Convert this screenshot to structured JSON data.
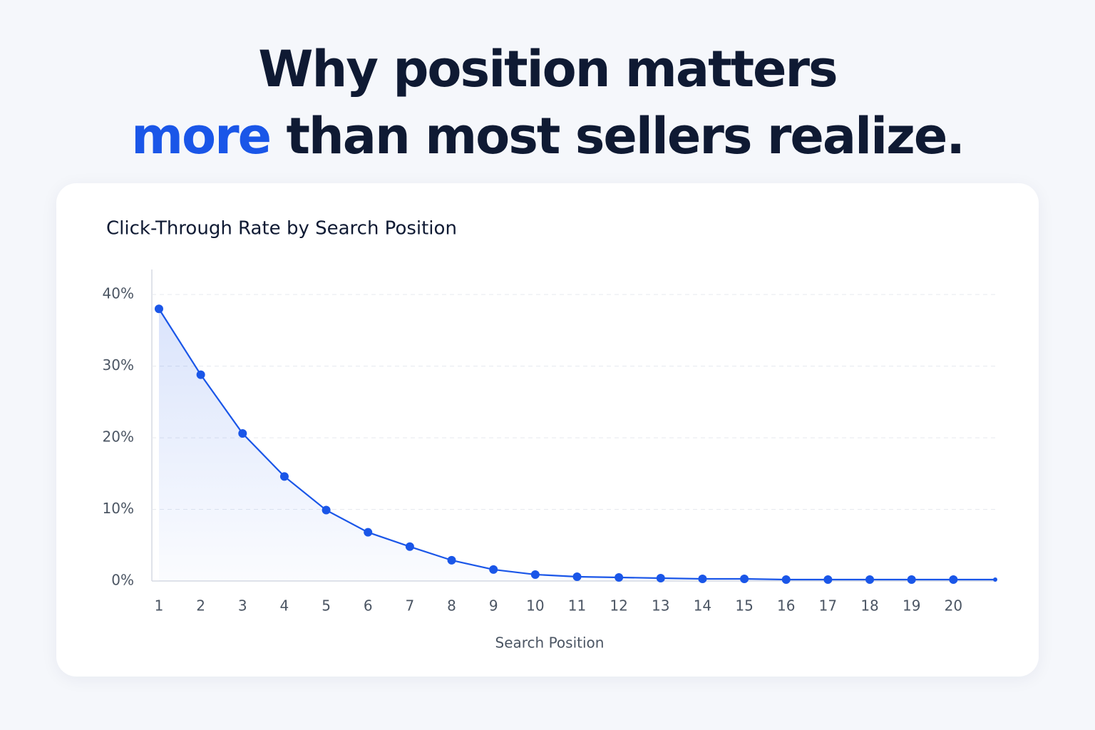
{
  "headline": {
    "line1": "Why position matters",
    "highlight": "more",
    "line2": "than most sellers realize."
  },
  "chart_data": {
    "type": "line",
    "title": "Click-Through Rate by Search Position",
    "x_label": "Search Position",
    "x": [
      1,
      2,
      3,
      4,
      5,
      6,
      7,
      8,
      9,
      10,
      11,
      12,
      13,
      14,
      15,
      16,
      17,
      18,
      19,
      20,
      21
    ],
    "series": [
      {
        "name": "CTR",
        "color": "#1a56e8",
        "values": [
          38,
          28.8,
          20.6,
          14.6,
          9.9,
          6.8,
          4.8,
          2.9,
          1.6,
          0.9,
          0.6,
          0.5,
          0.4,
          0.3,
          0.3,
          0.2,
          0.2,
          0.2,
          0.2,
          0.2,
          0.2
        ]
      }
    ],
    "xlim": [
      0.83,
      21
    ],
    "xticks": [
      1,
      2,
      3,
      4,
      5,
      6,
      7,
      8,
      9,
      10,
      11,
      12,
      13,
      14,
      15,
      16,
      17,
      18,
      19,
      20
    ],
    "ylim": [
      0,
      43.5
    ],
    "yticks": [
      {
        "value": 0,
        "label": "0%"
      },
      {
        "value": 10,
        "label": "10%"
      },
      {
        "value": 20,
        "label": "20%"
      },
      {
        "value": 30,
        "label": "30%"
      },
      {
        "value": 40,
        "label": "40%"
      }
    ],
    "grid": true
  }
}
